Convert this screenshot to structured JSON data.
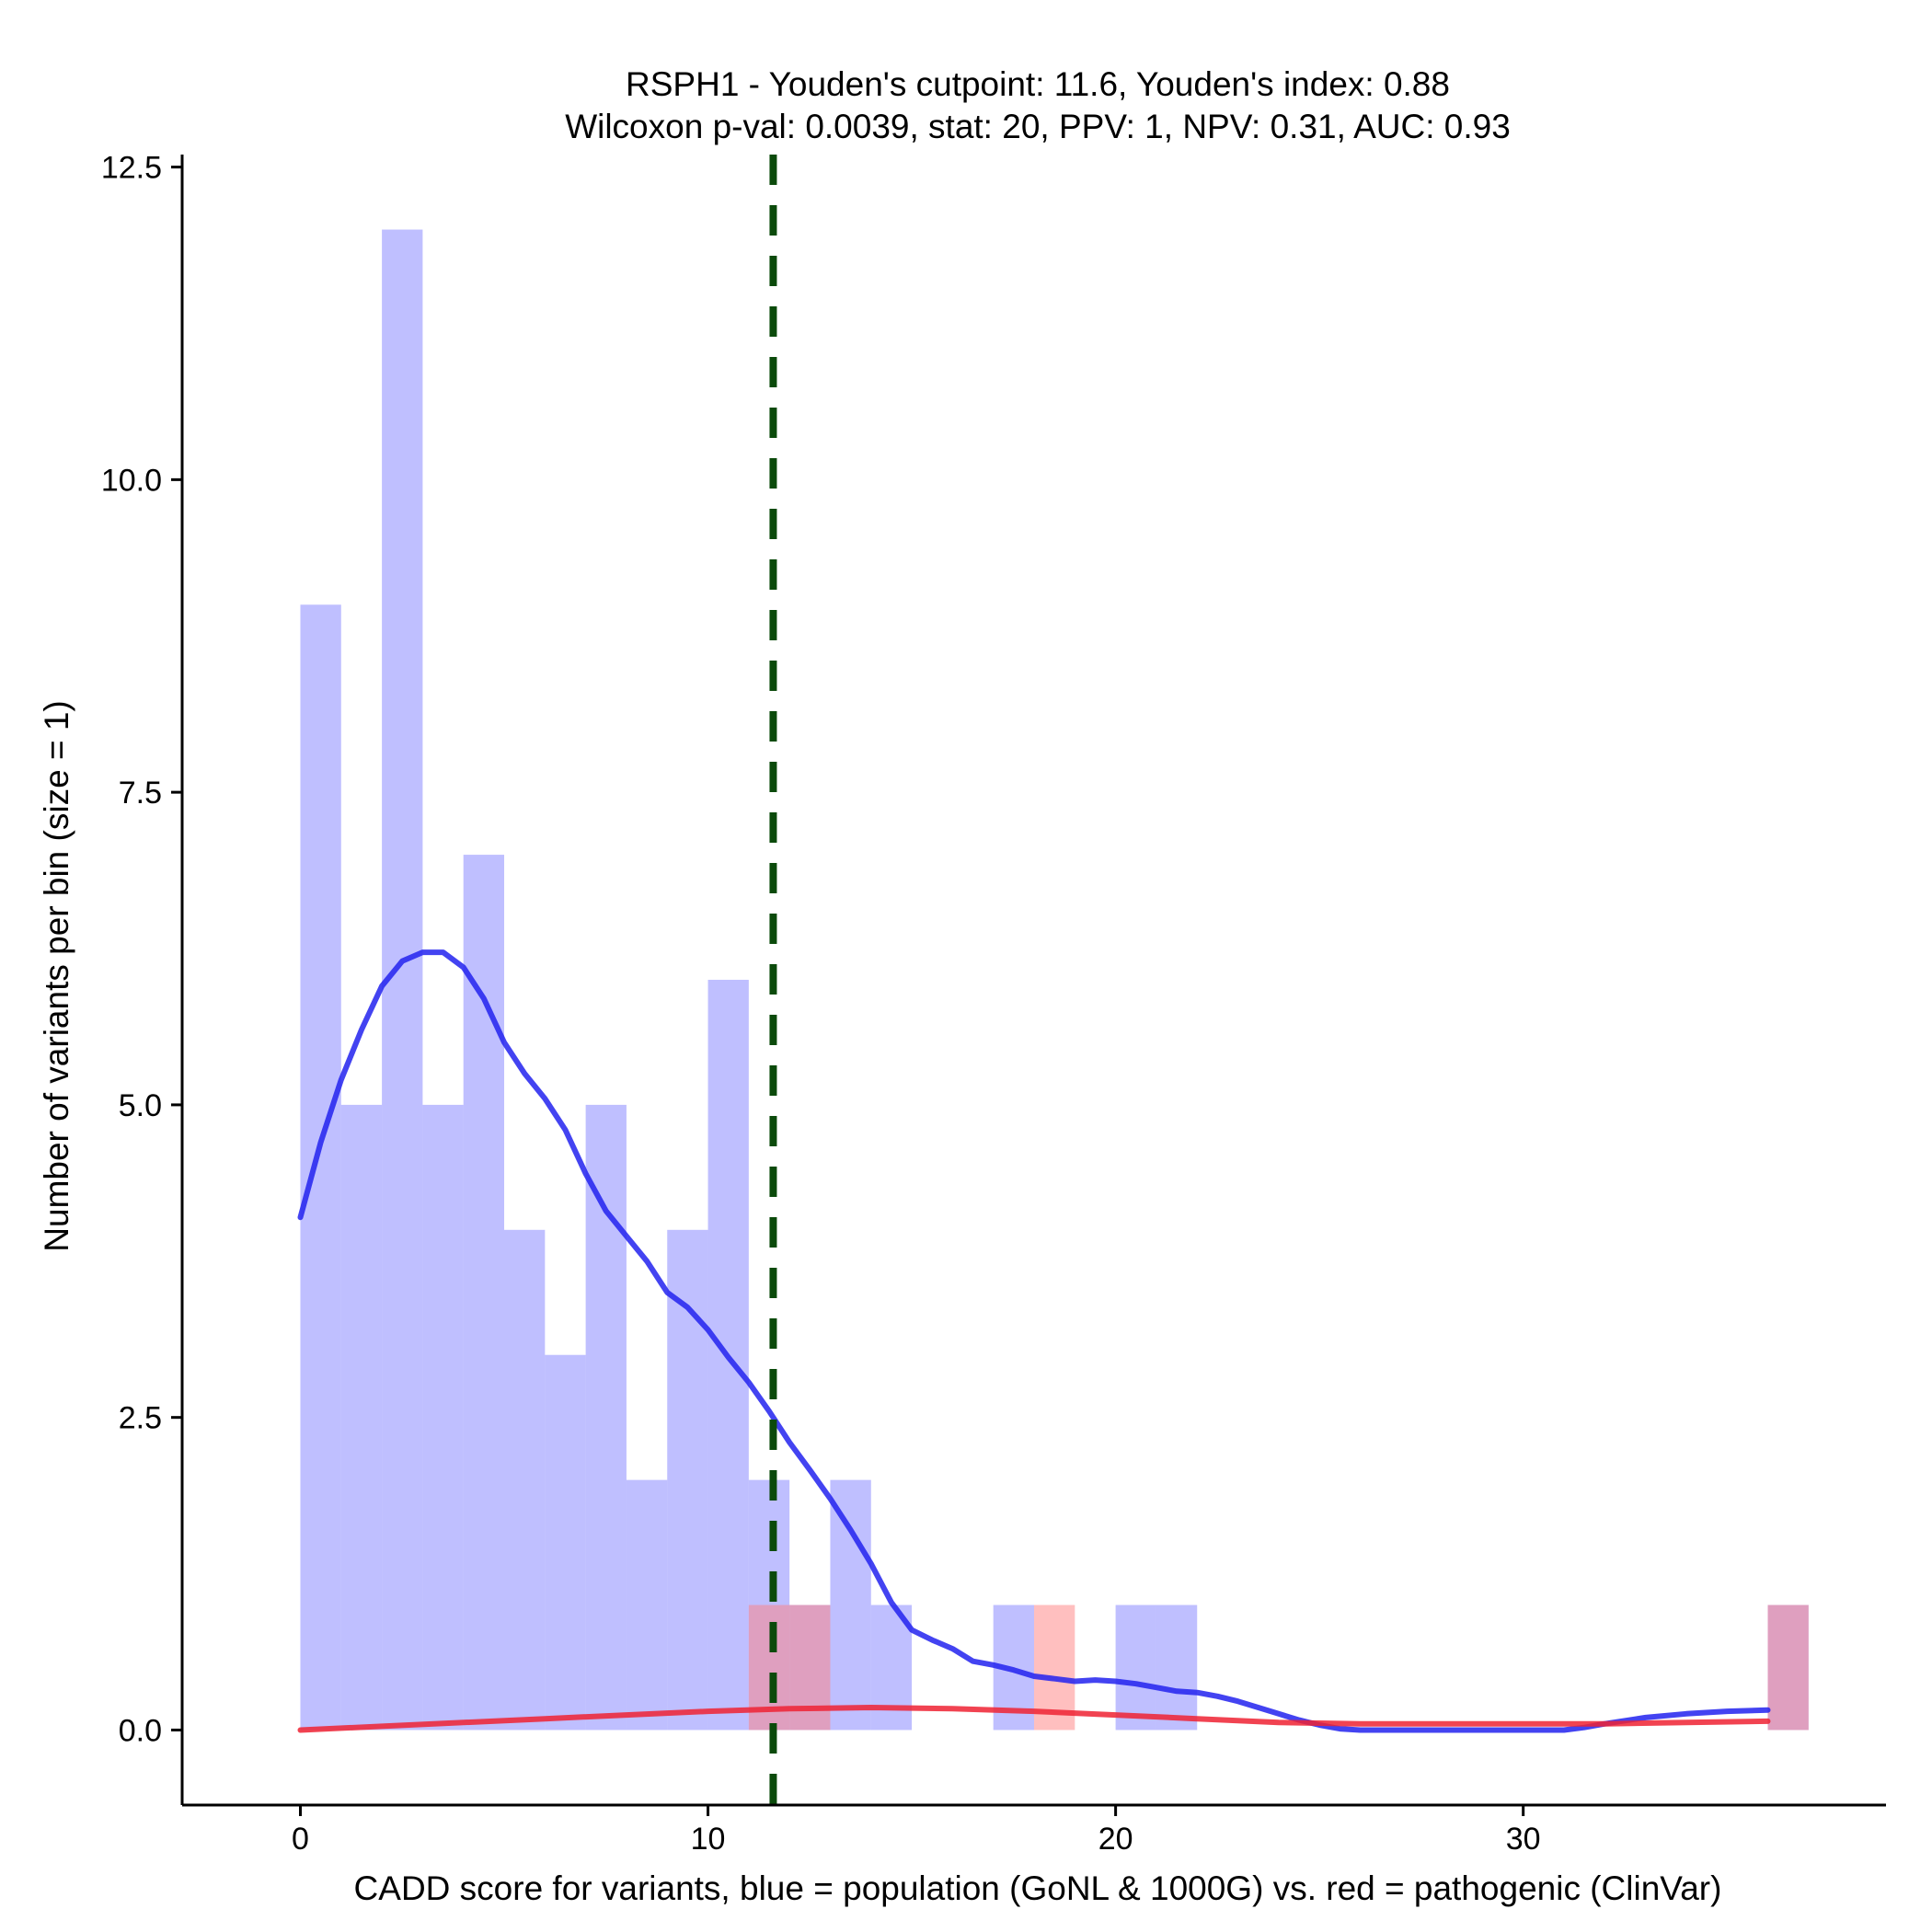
{
  "chart_data": {
    "type": "histogram",
    "title": "RSPH1 - Youden's cutpoint: 11.6, Youden's index: 0.88",
    "subtitle": "Wilcoxon p-val: 0.0039, stat: 20, PPV: 1, NPV: 0.31, AUC: 0.93",
    "xlabel": "CADD score for variants, blue = population (GoNL & 1000G) vs. red = pathogenic (ClinVar)",
    "ylabel": "Number of variants per bin (size = 1)",
    "xlim": [
      -2.9,
      38.9
    ],
    "ylim": [
      -0.6,
      12.6
    ],
    "x_ticks": [
      0,
      10,
      20,
      30
    ],
    "x_tick_labels": [
      "0",
      "10",
      "20",
      "30"
    ],
    "y_ticks": [
      0,
      2.5,
      5,
      7.5,
      10,
      12.5
    ],
    "y_tick_labels": [
      "0.0",
      "2.5",
      "5.0",
      "7.5",
      "10.0",
      "12.5"
    ],
    "bin_width": 1,
    "cutpoint": 11.6,
    "colors": {
      "population_bar": "#8080ff",
      "pathogenic_bar": "#ff8080",
      "population_density": "#2222ee",
      "pathogenic_density": "#ee2233",
      "cutpoint_line": "#0b4a0b"
    },
    "series": [
      {
        "name": "population (GoNL & 1000G)",
        "bins": [
          {
            "x0": 0,
            "x1": 1,
            "count": 9
          },
          {
            "x0": 1,
            "x1": 2,
            "count": 5
          },
          {
            "x0": 2,
            "x1": 3,
            "count": 12
          },
          {
            "x0": 3,
            "x1": 4,
            "count": 5
          },
          {
            "x0": 4,
            "x1": 5,
            "count": 7
          },
          {
            "x0": 5,
            "x1": 6,
            "count": 4
          },
          {
            "x0": 6,
            "x1": 7,
            "count": 3
          },
          {
            "x0": 7,
            "x1": 8,
            "count": 5
          },
          {
            "x0": 8,
            "x1": 9,
            "count": 2
          },
          {
            "x0": 9,
            "x1": 10,
            "count": 4
          },
          {
            "x0": 10,
            "x1": 11,
            "count": 6
          },
          {
            "x0": 11,
            "x1": 12,
            "count": 2
          },
          {
            "x0": 12,
            "x1": 13,
            "count": 1
          },
          {
            "x0": 13,
            "x1": 14,
            "count": 2
          },
          {
            "x0": 14,
            "x1": 15,
            "count": 1
          },
          {
            "x0": 17,
            "x1": 18,
            "count": 1
          },
          {
            "x0": 20,
            "x1": 21,
            "count": 1
          },
          {
            "x0": 21,
            "x1": 22,
            "count": 1
          },
          {
            "x0": 36,
            "x1": 37,
            "count": 1
          }
        ],
        "density_curve": [
          [
            0,
            4.1
          ],
          [
            0.5,
            4.7
          ],
          [
            1,
            5.2
          ],
          [
            1.5,
            5.6
          ],
          [
            2,
            5.95
          ],
          [
            2.5,
            6.15
          ],
          [
            3,
            6.22
          ],
          [
            3.5,
            6.22
          ],
          [
            4,
            6.1
          ],
          [
            4.5,
            5.85
          ],
          [
            5,
            5.5
          ],
          [
            5.5,
            5.25
          ],
          [
            6,
            5.05
          ],
          [
            6.5,
            4.8
          ],
          [
            7,
            4.45
          ],
          [
            7.5,
            4.15
          ],
          [
            8,
            3.95
          ],
          [
            8.5,
            3.75
          ],
          [
            9,
            3.5
          ],
          [
            9.5,
            3.38
          ],
          [
            10,
            3.2
          ],
          [
            10.5,
            2.98
          ],
          [
            11,
            2.78
          ],
          [
            11.5,
            2.55
          ],
          [
            12,
            2.3
          ],
          [
            12.5,
            2.08
          ],
          [
            13,
            1.85
          ],
          [
            13.5,
            1.6
          ],
          [
            14,
            1.33
          ],
          [
            14.5,
            1.02
          ],
          [
            15,
            0.8
          ],
          [
            15.5,
            0.72
          ],
          [
            16,
            0.65
          ],
          [
            16.5,
            0.55
          ],
          [
            17,
            0.52
          ],
          [
            17.5,
            0.48
          ],
          [
            18,
            0.43
          ],
          [
            18.5,
            0.41
          ],
          [
            19,
            0.39
          ],
          [
            19.5,
            0.4
          ],
          [
            20,
            0.39
          ],
          [
            20.5,
            0.37
          ],
          [
            21,
            0.34
          ],
          [
            21.5,
            0.31
          ],
          [
            22,
            0.3
          ],
          [
            22.5,
            0.27
          ],
          [
            23,
            0.23
          ],
          [
            23.5,
            0.18
          ],
          [
            24,
            0.13
          ],
          [
            24.5,
            0.08
          ],
          [
            25,
            0.04
          ],
          [
            25.5,
            0.01
          ],
          [
            26,
            0.0
          ],
          [
            27,
            0.0
          ],
          [
            28,
            0.0
          ],
          [
            29,
            0.0
          ],
          [
            30,
            0.0
          ],
          [
            31,
            0.0
          ],
          [
            31.5,
            0.02
          ],
          [
            32,
            0.05
          ],
          [
            33,
            0.1
          ],
          [
            34,
            0.13
          ],
          [
            35,
            0.15
          ],
          [
            36,
            0.16
          ]
        ]
      },
      {
        "name": "pathogenic (ClinVar)",
        "bins": [
          {
            "x0": 11,
            "x1": 12,
            "count": 1
          },
          {
            "x0": 12,
            "x1": 13,
            "count": 1
          },
          {
            "x0": 18,
            "x1": 19,
            "count": 1
          },
          {
            "x0": 36,
            "x1": 37,
            "count": 1
          }
        ],
        "density_curve": [
          [
            0,
            0.0
          ],
          [
            2,
            0.03
          ],
          [
            4,
            0.06
          ],
          [
            6,
            0.09
          ],
          [
            8,
            0.12
          ],
          [
            10,
            0.15
          ],
          [
            12,
            0.17
          ],
          [
            14,
            0.18
          ],
          [
            16,
            0.17
          ],
          [
            18,
            0.15
          ],
          [
            20,
            0.12
          ],
          [
            22,
            0.09
          ],
          [
            24,
            0.06
          ],
          [
            26,
            0.05
          ],
          [
            28,
            0.05
          ],
          [
            30,
            0.05
          ],
          [
            32,
            0.05
          ],
          [
            34,
            0.06
          ],
          [
            36,
            0.07
          ]
        ]
      }
    ]
  }
}
